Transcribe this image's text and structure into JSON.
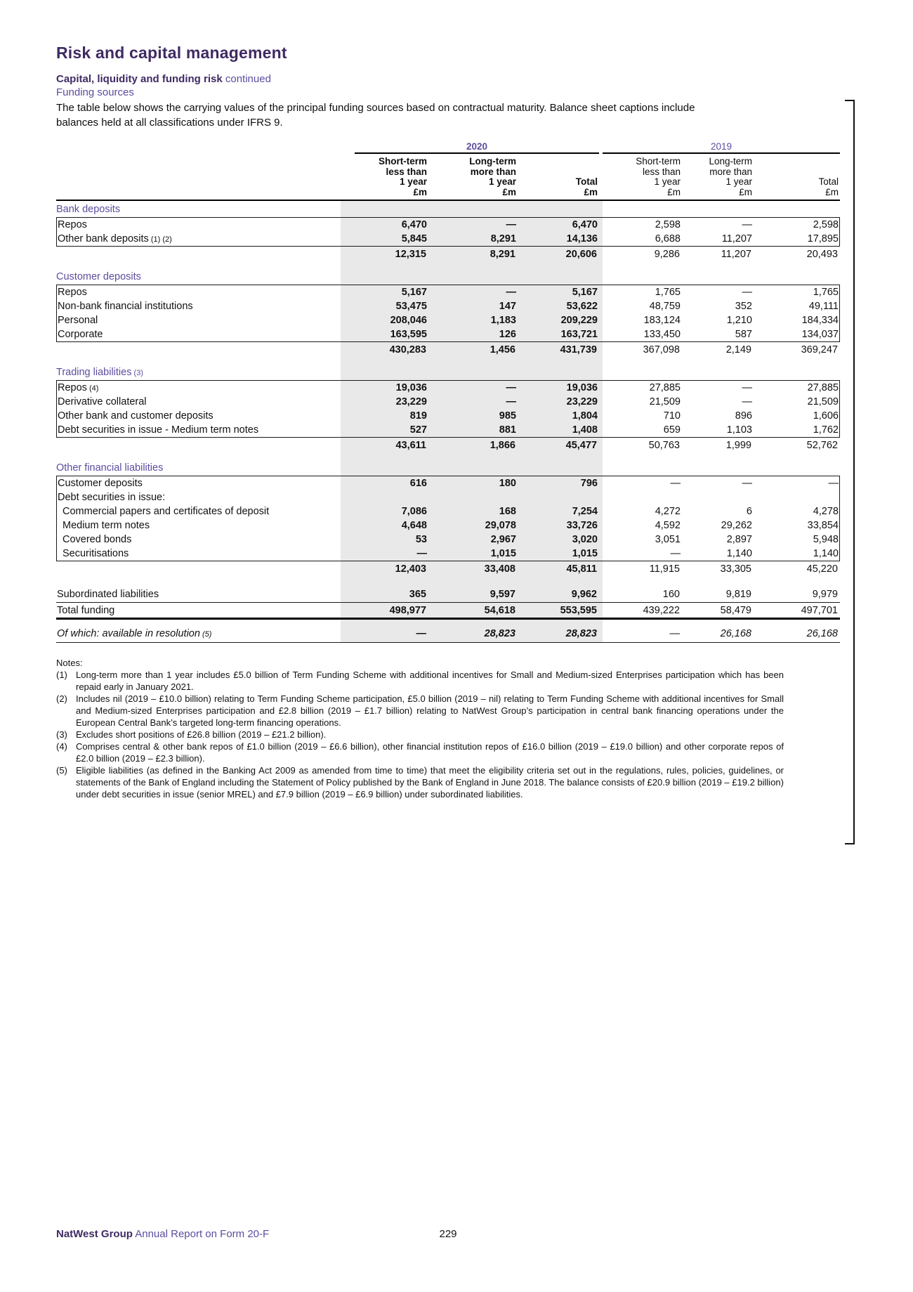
{
  "page": {
    "title": "Risk and capital management",
    "subtitle_bold": "Capital, liquidity and funding risk",
    "subtitle_cont": " continued",
    "section_heading": "Funding sources",
    "intro_line1": "The table below shows the carrying values of the principal funding sources based on contractual maturity. Balance sheet captions include",
    "intro_line2": "balances held at all classifications under IFRS 9."
  },
  "colors": {
    "heading_purple": "#3f2a63",
    "accent_purple": "#5d4c9f",
    "shade_gray": "#e9e9e9"
  },
  "table": {
    "year_groups": [
      {
        "label": "2020"
      },
      {
        "label": "2019"
      }
    ],
    "columns": [
      {
        "group": "2020",
        "bold": true,
        "lines": [
          "Short-term",
          "less than",
          "1 year",
          "£m"
        ]
      },
      {
        "group": "2020",
        "bold": true,
        "lines": [
          "Long-term",
          "more than",
          "1 year",
          "£m"
        ]
      },
      {
        "group": "2020",
        "bold": true,
        "lines": [
          "Total",
          "£m"
        ]
      },
      {
        "group": "2019",
        "bold": false,
        "lines": [
          "Short-term",
          "less than",
          "1 year",
          "£m"
        ]
      },
      {
        "group": "2019",
        "bold": false,
        "lines": [
          "Long-term",
          "more than",
          "1 year",
          "£m"
        ]
      },
      {
        "group": "2019",
        "bold": false,
        "lines": [
          "Total",
          "£m"
        ]
      }
    ],
    "sections": [
      {
        "heading": "Bank deposits",
        "rows": [
          {
            "label": "Repos",
            "v": [
              "6,470",
              "—",
              "6,470",
              "2,598",
              "—",
              "2,598"
            ]
          },
          {
            "label": "Other bank deposits",
            "ref": "(1) (2)",
            "v": [
              "5,845",
              "8,291",
              "14,136",
              "6,688",
              "11,207",
              "17,895"
            ]
          }
        ],
        "subtotal": [
          "12,315",
          "8,291",
          "20,606",
          "9,286",
          "11,207",
          "20,493"
        ]
      },
      {
        "heading": "Customer deposits",
        "rows": [
          {
            "label": "Repos",
            "v": [
              "5,167",
              "—",
              "5,167",
              "1,765",
              "—",
              "1,765"
            ]
          },
          {
            "label": "Non-bank financial institutions",
            "v": [
              "53,475",
              "147",
              "53,622",
              "48,759",
              "352",
              "49,111"
            ]
          },
          {
            "label": "Personal",
            "v": [
              "208,046",
              "1,183",
              "209,229",
              "183,124",
              "1,210",
              "184,334"
            ]
          },
          {
            "label": "Corporate",
            "v": [
              "163,595",
              "126",
              "163,721",
              "133,450",
              "587",
              "134,037"
            ]
          }
        ],
        "subtotal": [
          "430,283",
          "1,456",
          "431,739",
          "367,098",
          "2,149",
          "369,247"
        ]
      },
      {
        "heading": "Trading liabilities",
        "heading_ref": "(3)",
        "rows": [
          {
            "label": "Repos",
            "ref": "(4)",
            "v": [
              "19,036",
              "—",
              "19,036",
              "27,885",
              "—",
              "27,885"
            ]
          },
          {
            "label": "Derivative collateral",
            "v": [
              "23,229",
              "—",
              "23,229",
              "21,509",
              "—",
              "21,509"
            ]
          },
          {
            "label": "Other bank and customer deposits",
            "v": [
              "819",
              "985",
              "1,804",
              "710",
              "896",
              "1,606"
            ]
          },
          {
            "label": "Debt securities in issue - Medium term notes",
            "v": [
              "527",
              "881",
              "1,408",
              "659",
              "1,103",
              "1,762"
            ]
          }
        ],
        "subtotal": [
          "43,611",
          "1,866",
          "45,477",
          "50,763",
          "1,999",
          "52,762"
        ]
      },
      {
        "heading": "Other financial liabilities",
        "rows": [
          {
            "label": "Customer deposits",
            "v": [
              "616",
              "180",
              "796",
              "—",
              "—",
              "—"
            ]
          },
          {
            "label": "Debt securities in issue:",
            "v": [
              "",
              "",
              "",
              "",
              "",
              ""
            ]
          },
          {
            "label": "Commercial papers and certificates of deposit",
            "indent": true,
            "v": [
              "7,086",
              "168",
              "7,254",
              "4,272",
              "6",
              "4,278"
            ]
          },
          {
            "label": "Medium term notes",
            "indent": true,
            "v": [
              "4,648",
              "29,078",
              "33,726",
              "4,592",
              "29,262",
              "33,854"
            ]
          },
          {
            "label": "Covered bonds",
            "indent": true,
            "v": [
              "53",
              "2,967",
              "3,020",
              "3,051",
              "2,897",
              "5,948"
            ]
          },
          {
            "label": "Securitisations",
            "indent": true,
            "v": [
              "—",
              "1,015",
              "1,015",
              "—",
              "1,140",
              "1,140"
            ]
          }
        ],
        "subtotal": [
          "12,403",
          "33,408",
          "45,811",
          "11,915",
          "33,305",
          "45,220"
        ]
      }
    ],
    "closing_rows": [
      {
        "label": "Subordinated liabilities",
        "style": "plain",
        "v": [
          "365",
          "9,597",
          "9,962",
          "160",
          "9,819",
          "9,979"
        ]
      },
      {
        "label": "Total funding",
        "style": "total",
        "v": [
          "498,977",
          "54,618",
          "553,595",
          "439,222",
          "58,479",
          "497,701"
        ]
      },
      {
        "label": "Of which: available in resolution",
        "ref": "(5)",
        "style": "ofwhich",
        "v": [
          "—",
          "28,823",
          "28,823",
          "—",
          "26,168",
          "26,168"
        ]
      }
    ]
  },
  "notes": {
    "heading": "Notes:",
    "items": [
      {
        "num": "(1)",
        "text": "Long-term more than 1 year includes £5.0 billion of Term Funding Scheme with additional incentives for Small and Medium-sized Enterprises participation which has been repaid early in January 2021."
      },
      {
        "num": "(2)",
        "text": "Includes nil (2019 – £10.0 billion) relating to Term Funding Scheme participation, £5.0 billion (2019 – nil) relating to Term Funding Scheme with additional incentives for Small and Medium-sized Enterprises participation and £2.8 billion (2019 – £1.7 billion) relating to NatWest Group’s participation in central bank financing operations under the European Central Bank’s targeted long-term financing operations."
      },
      {
        "num": "(3)",
        "text": "Excludes short positions of £26.8 billion (2019 – £21.2 billion)."
      },
      {
        "num": "(4)",
        "text": "Comprises central & other bank repos of £1.0 billion (2019 – £6.6 billion), other financial institution repos of £16.0 billion (2019 – £19.0 billion) and other corporate repos of £2.0 billion (2019 – £2.3 billion)."
      },
      {
        "num": "(5)",
        "text": "Eligible liabilities (as defined in the Banking Act 2009 as amended from time to time) that meet the eligibility criteria set out in the regulations, rules, policies, guidelines, or statements of the Bank of England including the Statement of Policy published by the Bank of England in June 2018. The balance consists of £20.9 billion (2019 – £19.2 billion) under debt securities in issue (senior MREL) and £7.9 billion (2019 – £6.9 billion) under subordinated liabilities."
      }
    ]
  },
  "footer": {
    "brand": "NatWest Group",
    "report": " Annual Report on Form 20-F",
    "page_number": "229"
  }
}
